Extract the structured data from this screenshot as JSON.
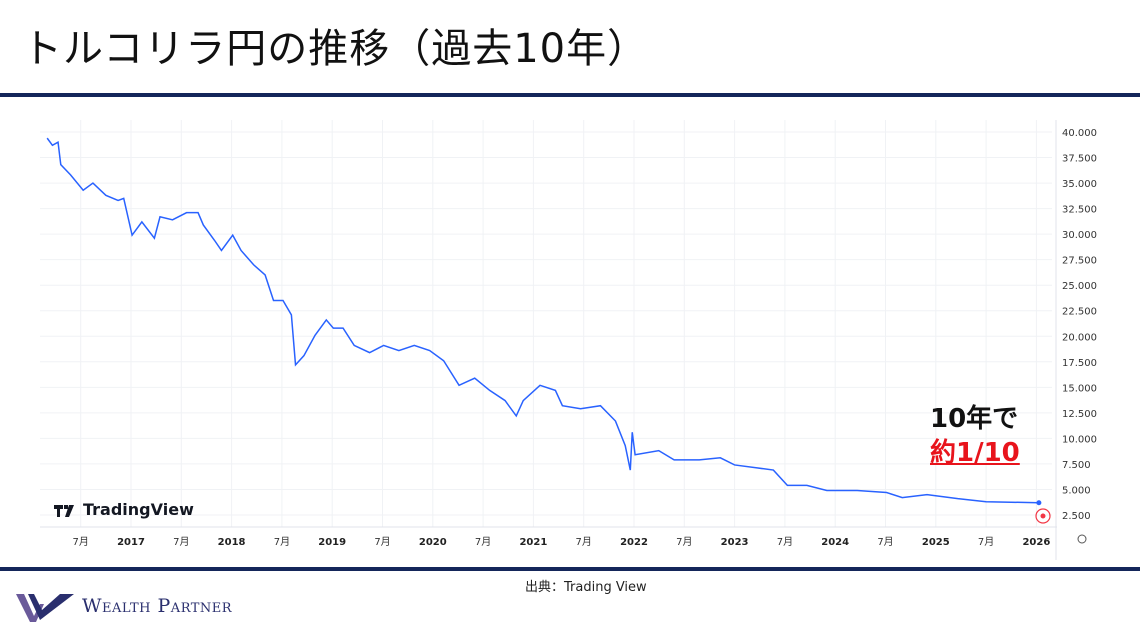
{
  "title": "トルコリラ円の推移（過去10年）",
  "source": "出典：Trading View",
  "logo_text": "Wealth Partner",
  "watermark": "TradingView",
  "annotation": {
    "line1": "10年で",
    "line2": "約1/10"
  },
  "colors": {
    "line": "#2962ff",
    "rule": "#14265a",
    "highlight": "#e8141c"
  },
  "chart_data": {
    "type": "line",
    "title": "",
    "xlabel": "",
    "ylabel": "",
    "ylim": [
      2.5,
      40
    ],
    "grid": true,
    "y_ticks": [
      "40.000",
      "37.500",
      "35.000",
      "32.500",
      "30.000",
      "27.500",
      "25.000",
      "22.500",
      "20.000",
      "17.500",
      "15.000",
      "12.500",
      "10.000",
      "7.500",
      "5.000",
      "2.500"
    ],
    "x_ticks": [
      "7月",
      "2017",
      "7月",
      "2018",
      "7月",
      "2019",
      "7月",
      "2020",
      "7月",
      "2021",
      "7月",
      "2022",
      "7月",
      "2023",
      "7月",
      "2024",
      "7月",
      "2025",
      "7月",
      "2026"
    ],
    "series": [
      {
        "values": [
          [
            "2016-03-01",
            39.4
          ],
          [
            "2016-03-20",
            38.7
          ],
          [
            "2016-04-10",
            39.0
          ],
          [
            "2016-04-20",
            36.8
          ],
          [
            "2016-05-25",
            35.8
          ],
          [
            "2016-07-10",
            34.3
          ],
          [
            "2016-08-15",
            35.0
          ],
          [
            "2016-10-01",
            33.8
          ],
          [
            "2016-11-15",
            33.3
          ],
          [
            "2016-12-05",
            33.5
          ],
          [
            "2017-01-05",
            29.9
          ],
          [
            "2017-02-10",
            31.2
          ],
          [
            "2017-03-25",
            29.6
          ],
          [
            "2017-04-15",
            31.7
          ],
          [
            "2017-05-30",
            31.4
          ],
          [
            "2017-07-20",
            32.1
          ],
          [
            "2017-09-01",
            32.1
          ],
          [
            "2017-09-20",
            30.9
          ],
          [
            "2017-10-30",
            29.4
          ],
          [
            "2017-11-25",
            28.4
          ],
          [
            "2018-01-05",
            29.9
          ],
          [
            "2018-02-05",
            28.4
          ],
          [
            "2018-03-20",
            27.0
          ],
          [
            "2018-05-01",
            26.0
          ],
          [
            "2018-06-01",
            23.5
          ],
          [
            "2018-07-05",
            23.5
          ],
          [
            "2018-08-05",
            22.1
          ],
          [
            "2018-08-20",
            17.2
          ],
          [
            "2018-09-20",
            18.1
          ],
          [
            "2018-10-30",
            20.1
          ],
          [
            "2018-12-10",
            21.6
          ],
          [
            "2019-01-05",
            20.8
          ],
          [
            "2019-02-10",
            20.8
          ],
          [
            "2019-03-20",
            19.1
          ],
          [
            "2019-05-15",
            18.4
          ],
          [
            "2019-07-05",
            19.1
          ],
          [
            "2019-08-30",
            18.6
          ],
          [
            "2019-10-25",
            19.1
          ],
          [
            "2019-12-20",
            18.6
          ],
          [
            "2020-02-10",
            17.6
          ],
          [
            "2020-04-05",
            15.2
          ],
          [
            "2020-06-01",
            15.9
          ],
          [
            "2020-07-25",
            14.7
          ],
          [
            "2020-09-20",
            13.7
          ],
          [
            "2020-10-30",
            12.2
          ],
          [
            "2020-11-25",
            13.7
          ],
          [
            "2021-01-25",
            15.2
          ],
          [
            "2021-03-20",
            14.7
          ],
          [
            "2021-04-15",
            13.2
          ],
          [
            "2021-06-20",
            12.9
          ],
          [
            "2021-09-01",
            13.2
          ],
          [
            "2021-10-25",
            11.7
          ],
          [
            "2021-11-30",
            9.3
          ],
          [
            "2021-12-18",
            6.9
          ],
          [
            "2021-12-25",
            10.6
          ],
          [
            "2022-01-05",
            8.4
          ],
          [
            "2022-03-30",
            8.8
          ],
          [
            "2022-05-25",
            7.9
          ],
          [
            "2022-08-25",
            7.9
          ],
          [
            "2022-11-10",
            8.1
          ],
          [
            "2023-01-01",
            7.4
          ],
          [
            "2023-03-25",
            7.1
          ],
          [
            "2023-05-20",
            6.9
          ],
          [
            "2023-07-10",
            5.4
          ],
          [
            "2023-09-20",
            5.4
          ],
          [
            "2023-12-01",
            4.9
          ],
          [
            "2024-03-20",
            4.9
          ],
          [
            "2024-07-05",
            4.7
          ],
          [
            "2024-09-01",
            4.2
          ],
          [
            "2024-11-30",
            4.5
          ],
          [
            "2025-03-20",
            4.1
          ],
          [
            "2025-07-01",
            3.8
          ],
          [
            "2026-01-10",
            3.7
          ]
        ]
      }
    ]
  }
}
